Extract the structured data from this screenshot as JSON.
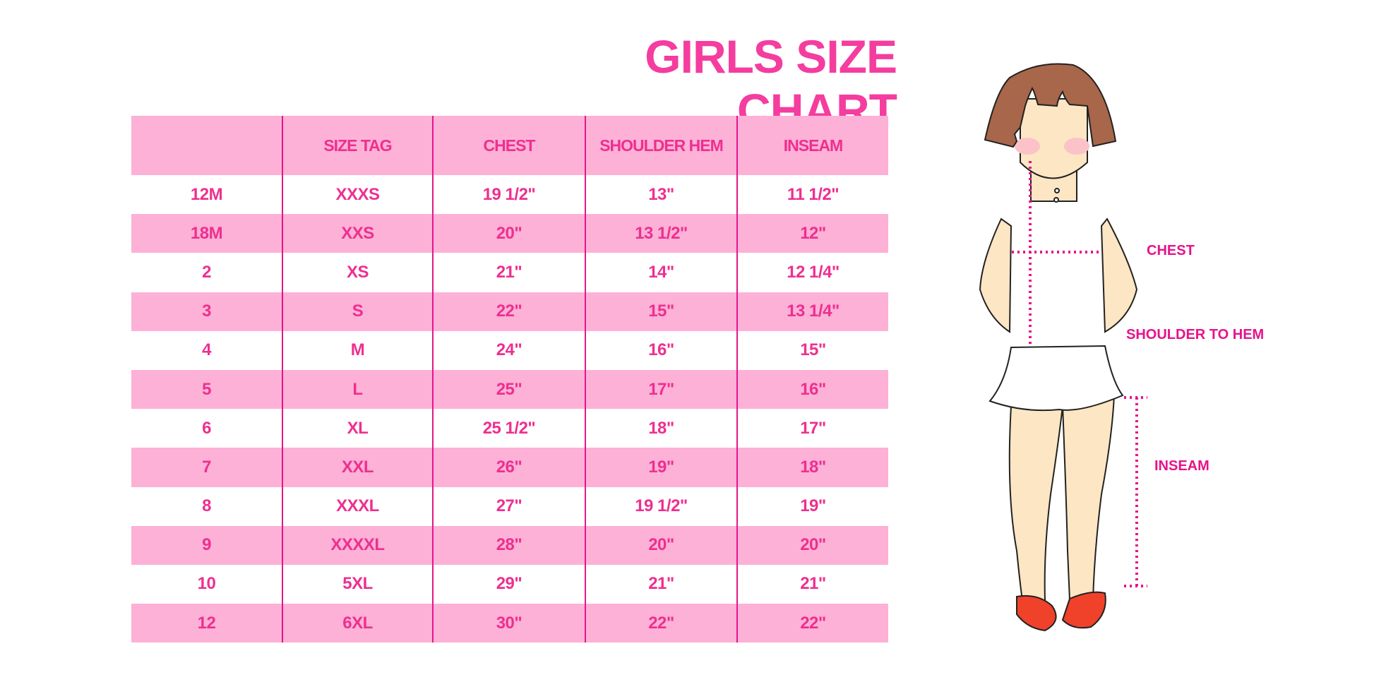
{
  "title": "GIRLS SIZE CHART",
  "table": {
    "headers": [
      "",
      "SIZE TAG",
      "CHEST",
      "SHOULDER HEM",
      "INSEAM"
    ],
    "rows": [
      [
        "12M",
        "XXXS",
        "19 1/2\"",
        "13\"",
        "11 1/2\""
      ],
      [
        "18M",
        "XXS",
        "20\"",
        "13 1/2\"",
        "12\""
      ],
      [
        "2",
        "XS",
        "21\"",
        "14\"",
        "12 1/4\""
      ],
      [
        "3",
        "S",
        "22\"",
        "15\"",
        "13 1/4\""
      ],
      [
        "4",
        "M",
        "24\"",
        "16\"",
        "15\""
      ],
      [
        "5",
        "L",
        "25\"",
        "17\"",
        "16\""
      ],
      [
        "6",
        "XL",
        "25 1/2\"",
        "18\"",
        "17\""
      ],
      [
        "7",
        "XXL",
        "26\"",
        "19\"",
        "18\""
      ],
      [
        "8",
        "XXXL",
        "27\"",
        "19 1/2\"",
        "19\""
      ],
      [
        "9",
        "XXXXL",
        "28\"",
        "20\"",
        "20\""
      ],
      [
        "10",
        "5XL",
        "29\"",
        "21\"",
        "21\""
      ],
      [
        "12",
        "6XL",
        "30\"",
        "22\"",
        "22\""
      ]
    ]
  },
  "figure": {
    "labels": {
      "chest": "CHEST",
      "shoulder_to_hem": "SHOULDER TO HEM",
      "inseam": "INSEAM"
    }
  },
  "colors": {
    "accent": "#f43d9f",
    "row_fill": "#fdb1d6",
    "divider": "#e4168b",
    "measure": "#e8128a"
  }
}
